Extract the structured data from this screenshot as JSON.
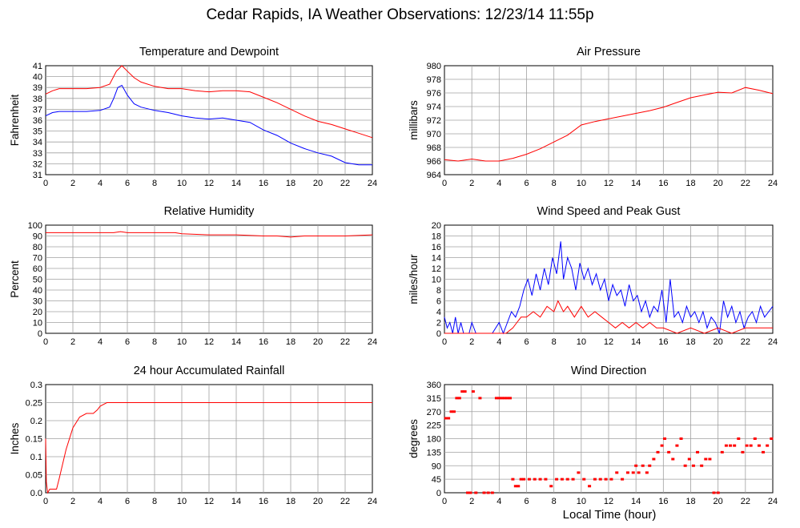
{
  "title": "Cedar Rapids, IA Weather Observations: 12/23/14 11:55p",
  "x_axis_label": "Local Time (hour)",
  "colors": {
    "red": "#ff0000",
    "blue": "#0000ff",
    "grid": "#a0a0a0"
  },
  "chart_data": [
    {
      "type": "line",
      "title": "Temperature and Dewpoint",
      "ylabel": "Fahrenheit",
      "xlim": [
        0,
        24
      ],
      "ylim": [
        31,
        41
      ],
      "xticks": [
        0,
        2,
        4,
        6,
        8,
        10,
        12,
        14,
        16,
        18,
        20,
        22,
        24
      ],
      "yticks": [
        31,
        32,
        33,
        34,
        35,
        36,
        37,
        38,
        39,
        40,
        41
      ],
      "grid": true,
      "series": [
        {
          "color": "red",
          "x": [
            0,
            0.5,
            1,
            2,
            3,
            4,
            4.7,
            5.2,
            5.6,
            6.0,
            6.5,
            7.0,
            8.0,
            9.0,
            10.0,
            11.0,
            12.0,
            13.0,
            14.0,
            15.0,
            16.0,
            17.0,
            18.0,
            19.0,
            20.0,
            21.0,
            22.0,
            23.0,
            24.0
          ],
          "y": [
            38.4,
            38.7,
            38.9,
            38.9,
            38.9,
            39.0,
            39.3,
            40.5,
            41.0,
            40.5,
            39.9,
            39.5,
            39.1,
            38.9,
            38.9,
            38.7,
            38.6,
            38.7,
            38.7,
            38.6,
            38.1,
            37.6,
            37.0,
            36.4,
            35.9,
            35.6,
            35.2,
            34.8,
            34.4
          ]
        },
        {
          "color": "blue",
          "x": [
            0,
            0.5,
            1,
            2,
            3,
            4,
            4.7,
            5.0,
            5.3,
            5.6,
            6.0,
            6.5,
            7.0,
            8.0,
            9.0,
            10.0,
            11.0,
            12.0,
            13.0,
            14.0,
            15.0,
            16.0,
            17.0,
            18.0,
            19.0,
            20.0,
            21.0,
            22.0,
            23.0,
            24.0
          ],
          "y": [
            36.4,
            36.7,
            36.8,
            36.8,
            36.8,
            36.9,
            37.2,
            38.0,
            39.0,
            39.2,
            38.3,
            37.5,
            37.2,
            36.9,
            36.7,
            36.4,
            36.2,
            36.1,
            36.2,
            36.0,
            35.8,
            35.1,
            34.6,
            33.9,
            33.4,
            33.0,
            32.7,
            32.1,
            31.9,
            31.9
          ]
        }
      ]
    },
    {
      "type": "line",
      "title": "Air Pressure",
      "ylabel": "millibars",
      "xlim": [
        0,
        24
      ],
      "ylim": [
        964,
        980
      ],
      "xticks": [
        0,
        2,
        4,
        6,
        8,
        10,
        12,
        14,
        16,
        18,
        20,
        22,
        24
      ],
      "yticks": [
        964,
        966,
        968,
        970,
        972,
        974,
        976,
        978,
        980
      ],
      "grid": true,
      "series": [
        {
          "color": "red",
          "x": [
            0,
            1,
            2,
            3,
            4,
            5,
            6,
            7,
            8,
            9,
            10,
            11,
            12,
            13,
            14,
            15,
            16,
            17,
            18,
            19,
            20,
            21,
            22,
            23,
            24
          ],
          "y": [
            966.2,
            966.0,
            966.3,
            966.0,
            966.0,
            966.4,
            967.0,
            967.8,
            968.8,
            969.8,
            971.3,
            971.8,
            972.2,
            972.6,
            973.0,
            973.4,
            973.9,
            974.6,
            975.3,
            975.7,
            976.1,
            976.0,
            976.8,
            976.4,
            975.9
          ]
        }
      ]
    },
    {
      "type": "line",
      "title": "Relative Humidity",
      "ylabel": "Percent",
      "xlim": [
        0,
        24
      ],
      "ylim": [
        0,
        100
      ],
      "xticks": [
        0,
        2,
        4,
        6,
        8,
        10,
        12,
        14,
        16,
        18,
        20,
        22,
        24
      ],
      "yticks": [
        0,
        10,
        20,
        30,
        40,
        50,
        60,
        70,
        80,
        90,
        100
      ],
      "grid": true,
      "series": [
        {
          "color": "red",
          "x": [
            0,
            2,
            4,
            5,
            5.5,
            6,
            8,
            9.5,
            10,
            12,
            14,
            16,
            17,
            18,
            19,
            20,
            22,
            24
          ],
          "y": [
            93,
            93,
            93,
            93,
            94,
            93,
            93,
            93,
            92,
            91,
            91,
            90,
            90,
            89,
            90,
            90,
            90,
            91
          ]
        }
      ]
    },
    {
      "type": "line",
      "title": "Wind Speed and Peak Gust",
      "ylabel": "miles/hour",
      "xlim": [
        0,
        24
      ],
      "ylim": [
        0,
        20
      ],
      "xticks": [
        0,
        2,
        4,
        6,
        8,
        10,
        12,
        14,
        16,
        18,
        20,
        22,
        24
      ],
      "yticks": [
        0,
        2,
        4,
        6,
        8,
        10,
        12,
        14,
        16,
        18,
        20
      ],
      "grid": true,
      "series": [
        {
          "color": "blue",
          "x": [
            0,
            0.2,
            0.4,
            0.6,
            0.8,
            1.0,
            1.2,
            1.4,
            1.6,
            1.8,
            2.0,
            2.3,
            2.6,
            3.0,
            3.5,
            4.0,
            4.3,
            4.6,
            4.9,
            5.2,
            5.5,
            5.8,
            6.1,
            6.4,
            6.7,
            7.0,
            7.3,
            7.6,
            7.9,
            8.2,
            8.5,
            8.7,
            9.0,
            9.3,
            9.6,
            9.9,
            10.2,
            10.5,
            10.8,
            11.1,
            11.4,
            11.7,
            12.0,
            12.3,
            12.6,
            12.9,
            13.2,
            13.5,
            13.8,
            14.1,
            14.4,
            14.7,
            15.0,
            15.3,
            15.6,
            15.9,
            16.2,
            16.5,
            16.8,
            17.1,
            17.4,
            17.7,
            18.0,
            18.3,
            18.6,
            18.9,
            19.2,
            19.5,
            19.8,
            20.1,
            20.4,
            20.7,
            21.0,
            21.3,
            21.6,
            21.9,
            22.2,
            22.5,
            22.8,
            23.1,
            23.4,
            23.7,
            24.0
          ],
          "y": [
            3,
            1,
            2,
            0,
            3,
            0,
            2,
            0,
            0,
            0,
            2,
            0,
            0,
            0,
            0,
            2,
            0,
            2,
            4,
            3,
            5,
            8,
            10,
            7,
            11,
            8,
            12,
            9,
            14,
            11,
            17,
            10,
            14,
            12,
            8,
            13,
            10,
            12,
            9,
            11,
            8,
            10,
            6,
            9,
            7,
            8,
            5,
            9,
            6,
            7,
            4,
            6,
            3,
            5,
            4,
            8,
            2,
            10,
            3,
            4,
            2,
            5,
            3,
            4,
            2,
            4,
            1,
            3,
            2,
            0,
            6,
            3,
            5,
            2,
            4,
            1,
            3,
            4,
            2,
            5,
            3,
            4,
            5
          ]
        },
        {
          "color": "red",
          "x": [
            0,
            2,
            4.5,
            5.0,
            5.3,
            5.6,
            6.0,
            6.5,
            7.0,
            7.5,
            8.0,
            8.3,
            8.7,
            9.0,
            9.5,
            10.0,
            10.5,
            11.0,
            11.5,
            12.0,
            12.5,
            13.0,
            13.5,
            14.0,
            14.5,
            15.0,
            15.5,
            16.0,
            17.0,
            18.0,
            19.0,
            20.0,
            21.0,
            22.0,
            23.0,
            24.0
          ],
          "y": [
            0,
            0,
            0,
            1,
            2,
            3,
            3,
            4,
            3,
            5,
            4,
            6,
            4,
            5,
            3,
            5,
            3,
            4,
            3,
            2,
            1,
            2,
            1,
            2,
            1,
            2,
            1,
            1,
            0,
            1,
            0,
            1,
            0,
            1,
            1,
            1
          ]
        }
      ]
    },
    {
      "type": "line",
      "title": "24 hour Accumulated Rainfall",
      "ylabel": "Inches",
      "xlim": [
        0,
        24
      ],
      "ylim": [
        0,
        0.3
      ],
      "xticks": [
        0,
        2,
        4,
        6,
        8,
        10,
        12,
        14,
        16,
        18,
        20,
        22,
        24
      ],
      "yticks": [
        0.0,
        0.05,
        0.1,
        0.15,
        0.2,
        0.25,
        0.3
      ],
      "yticklabels": [
        "0.0",
        "0.05",
        "0.1",
        "0.15",
        "0.2",
        "0.25",
        "0.3"
      ],
      "grid": true,
      "series": [
        {
          "color": "red",
          "x": [
            0,
            0.05,
            0.15,
            0.3,
            0.8,
            1.0,
            1.5,
            2.0,
            2.5,
            3.0,
            3.5,
            3.8,
            4.0,
            4.5,
            5.0,
            8.0,
            12.0,
            16.0,
            20.0,
            24.0
          ],
          "y": [
            0.15,
            0.03,
            0.0,
            0.01,
            0.01,
            0.04,
            0.12,
            0.18,
            0.21,
            0.22,
            0.22,
            0.23,
            0.24,
            0.25,
            0.25,
            0.25,
            0.25,
            0.25,
            0.25,
            0.25
          ]
        }
      ]
    },
    {
      "type": "scatter",
      "title": "Wind Direction",
      "ylabel": "degrees",
      "xlim": [
        0,
        24
      ],
      "ylim": [
        0,
        360
      ],
      "xticks": [
        0,
        2,
        4,
        6,
        8,
        10,
        12,
        14,
        16,
        18,
        20,
        22,
        24
      ],
      "yticks": [
        0,
        45,
        90,
        135,
        180,
        225,
        270,
        315,
        360
      ],
      "grid": true,
      "series": [
        {
          "color": "red",
          "x": [
            0.1,
            0.3,
            0.5,
            0.7,
            0.9,
            1.1,
            1.3,
            1.5,
            1.7,
            1.9,
            2.1,
            2.3,
            2.6,
            2.9,
            3.2,
            3.5,
            3.8,
            4.0,
            4.2,
            4.4,
            4.6,
            4.8,
            5.0,
            5.2,
            5.4,
            5.6,
            5.8,
            6.2,
            6.6,
            7.0,
            7.4,
            7.8,
            8.2,
            8.6,
            9.0,
            9.4,
            9.8,
            10.2,
            10.6,
            11.0,
            11.4,
            11.8,
            12.2,
            12.6,
            13.0,
            13.4,
            13.8,
            14.0,
            14.2,
            14.5,
            14.8,
            15.0,
            15.3,
            15.6,
            15.9,
            16.1,
            16.4,
            16.7,
            17.0,
            17.3,
            17.6,
            17.9,
            18.2,
            18.5,
            18.8,
            19.1,
            19.4,
            19.7,
            20.0,
            20.3,
            20.6,
            20.9,
            21.2,
            21.5,
            21.8,
            22.1,
            22.4,
            22.7,
            23.0,
            23.3,
            23.6,
            23.9
          ],
          "y": [
            248,
            248,
            270,
            270,
            315,
            315,
            337,
            337,
            0,
            0,
            337,
            0,
            315,
            0,
            0,
            0,
            315,
            315,
            315,
            315,
            315,
            315,
            45,
            22,
            22,
            45,
            45,
            45,
            45,
            45,
            45,
            22,
            45,
            45,
            45,
            45,
            67,
            45,
            22,
            45,
            45,
            45,
            45,
            67,
            45,
            67,
            67,
            90,
            67,
            90,
            67,
            90,
            112,
            135,
            157,
            180,
            135,
            112,
            157,
            180,
            90,
            112,
            90,
            135,
            90,
            112,
            112,
            0,
            0,
            135,
            157,
            157,
            157,
            180,
            135,
            157,
            157,
            180,
            157,
            135,
            157,
            180
          ]
        }
      ]
    }
  ]
}
